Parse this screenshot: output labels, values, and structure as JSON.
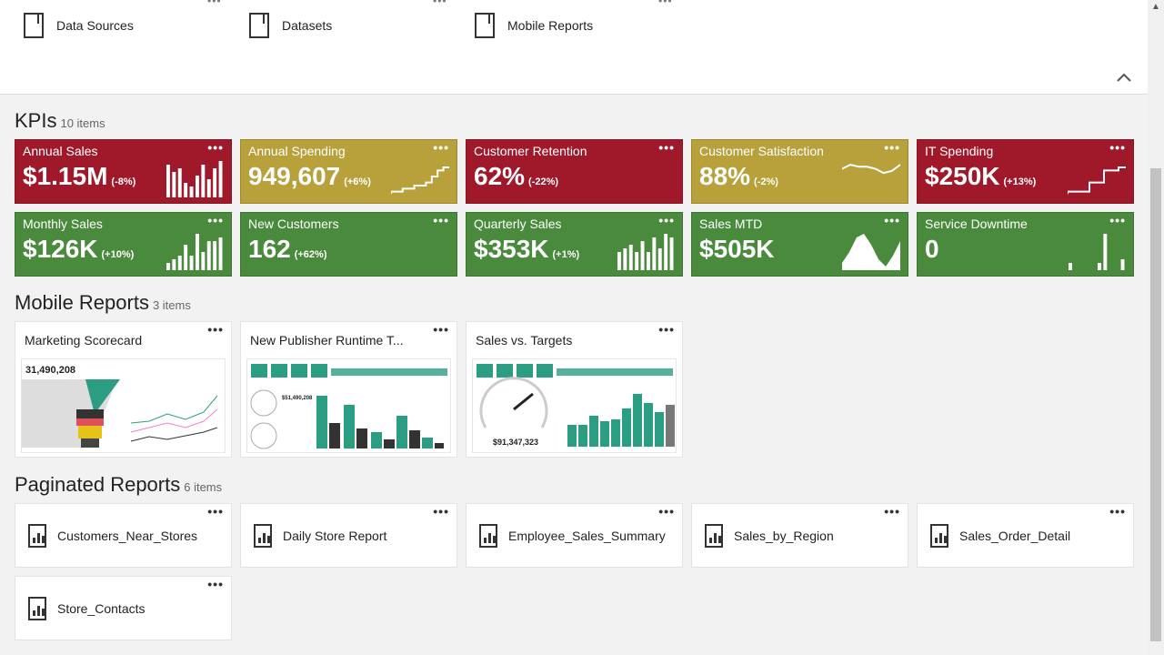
{
  "folders": [
    {
      "label": "Data Sources"
    },
    {
      "label": "Datasets"
    },
    {
      "label": "Mobile Reports"
    }
  ],
  "more_label": "•••",
  "collapse_icon": "chevron-up-icon",
  "colors": {
    "red": "#a0192a",
    "yellow": "#b8a13b",
    "green": "#4a8a3c"
  },
  "kpis": {
    "title": "KPIs",
    "count": "10 items",
    "items": [
      {
        "title": "Annual Sales",
        "value": "$1.15M",
        "change": "(-8%)",
        "status": "red",
        "spark": "bar",
        "trend": [
          9,
          7,
          8,
          4,
          3,
          6,
          9,
          5,
          8,
          10
        ]
      },
      {
        "title": "Annual Spending",
        "value": "949,607",
        "change": "(+6%)",
        "status": "yellow",
        "spark": "step",
        "trend": [
          1,
          1,
          2,
          2,
          3,
          3,
          4,
          6,
          8,
          9,
          9
        ]
      },
      {
        "title": "Customer Retention",
        "value": "62%",
        "change": "(-22%)",
        "status": "red",
        "spark": "none",
        "trend": []
      },
      {
        "title": "Customer Satisfaction",
        "value": "88%",
        "change": "(-2%)",
        "status": "yellow",
        "spark": "line",
        "trend": [
          5,
          7,
          6,
          6,
          5,
          3,
          4,
          7
        ]
      },
      {
        "title": "IT Spending",
        "value": "$250K",
        "change": "(+13%)",
        "status": "red",
        "spark": "step",
        "trend": [
          1,
          1,
          1,
          4,
          4,
          8,
          8,
          9,
          9
        ]
      },
      {
        "title": "Monthly Sales",
        "value": "$126K",
        "change": "(+10%)",
        "status": "green",
        "spark": "bar",
        "trend": [
          2,
          3,
          4,
          7,
          4,
          10,
          5,
          8,
          8,
          9
        ]
      },
      {
        "title": "New Customers",
        "value": "162",
        "change": "(+62%)",
        "status": "green",
        "spark": "none",
        "trend": []
      },
      {
        "title": "Quarterly Sales",
        "value": "$353K",
        "change": "(+1%)",
        "status": "green",
        "spark": "bar",
        "trend": [
          5,
          6,
          7,
          5,
          8,
          5,
          9,
          6,
          10,
          9
        ]
      },
      {
        "title": "Sales MTD",
        "value": "$505K",
        "change": "",
        "status": "green",
        "spark": "area",
        "trend": [
          2,
          5,
          9,
          10,
          7,
          3,
          1,
          4,
          8
        ]
      },
      {
        "title": "Service Downtime",
        "value": "0",
        "change": "",
        "status": "green",
        "spark": "bar",
        "trend": [
          2,
          0,
          0,
          0,
          0,
          2,
          10,
          0,
          0,
          3
        ]
      }
    ]
  },
  "mobile": {
    "title": "Mobile Reports",
    "count": "3 items",
    "items": [
      {
        "title": "Marketing Scorecard",
        "thumb_value": "31,490,208"
      },
      {
        "title": "New Publisher Runtime T...",
        "thumb_value": "$51,490,208"
      },
      {
        "title": "Sales vs. Targets",
        "thumb_value": "$91,347,323"
      }
    ]
  },
  "paginated": {
    "title": "Paginated Reports",
    "count": "6 items",
    "items": [
      {
        "title": "Customers_Near_Stores"
      },
      {
        "title": "Daily Store Report"
      },
      {
        "title": "Employee_Sales_Summary"
      },
      {
        "title": "Sales_by_Region"
      },
      {
        "title": "Sales_Order_Detail"
      },
      {
        "title": "Store_Contacts"
      }
    ]
  }
}
